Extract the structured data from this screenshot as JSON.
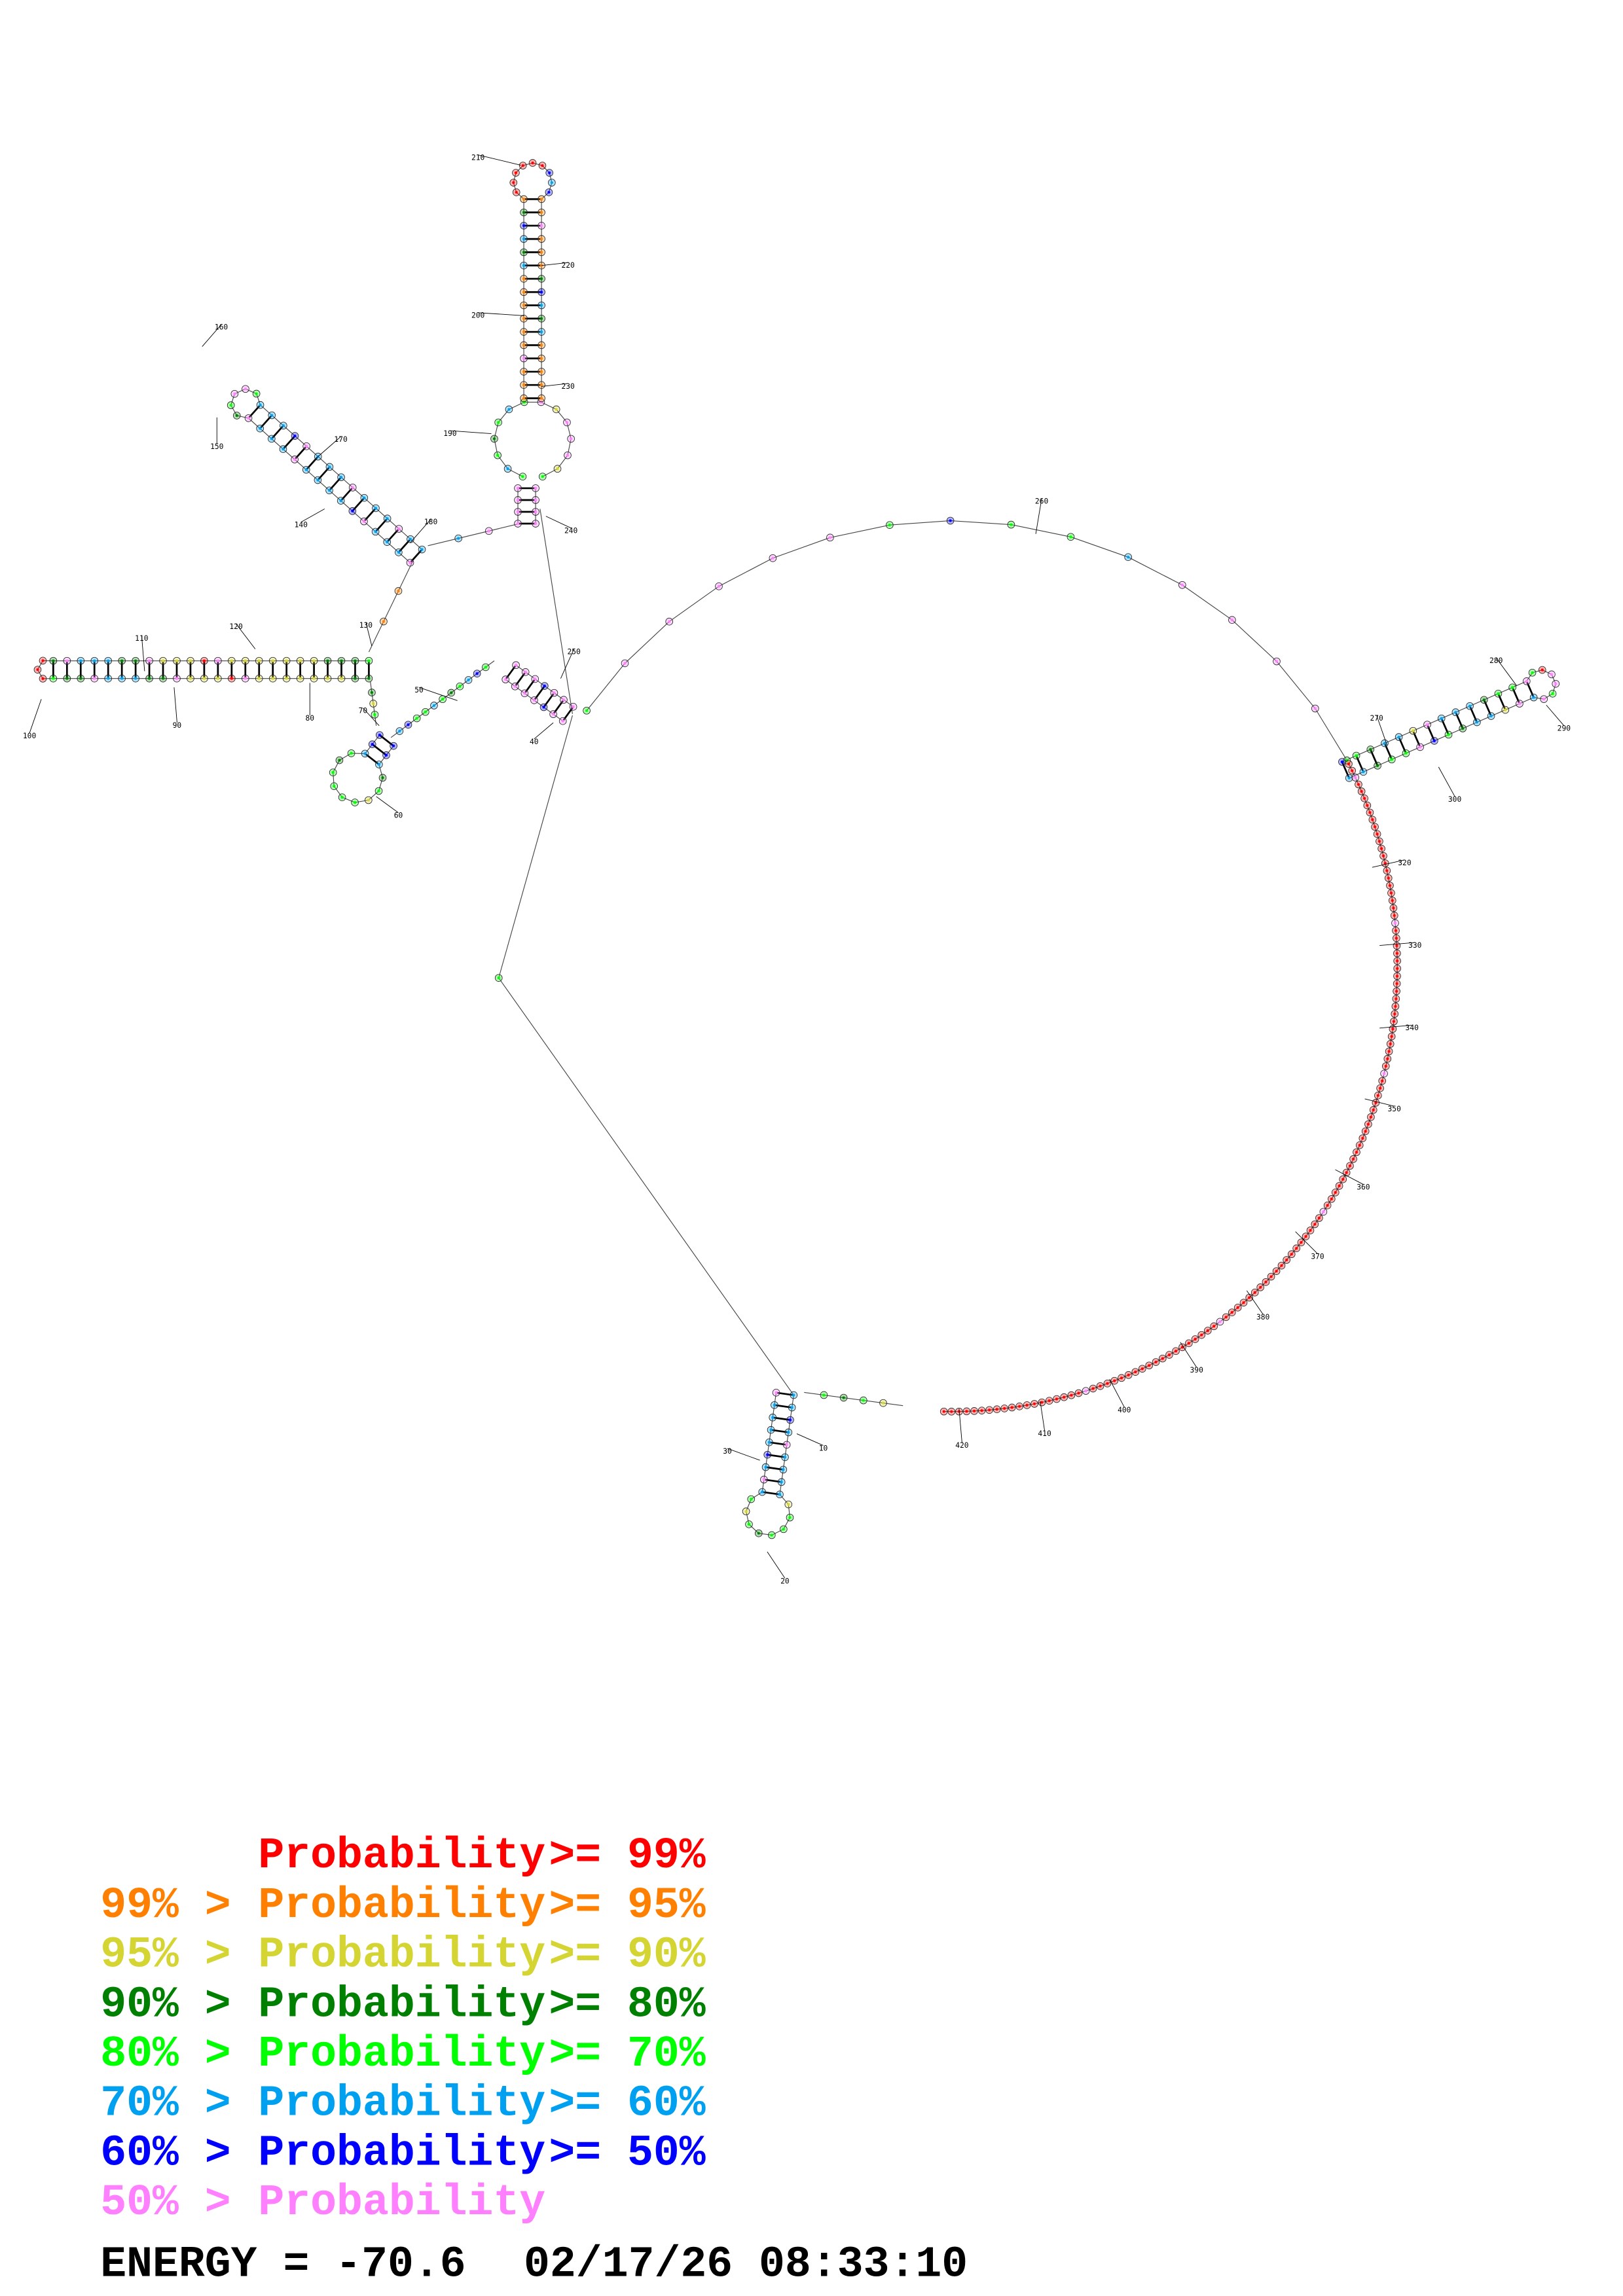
{
  "position_labels": [
    "10",
    "20",
    "30",
    "40",
    "50",
    "60",
    "70",
    "80",
    "90",
    "100",
    "110",
    "120",
    "130",
    "140",
    "150",
    "160",
    "170",
    "180",
    "190",
    "200",
    "210",
    "220",
    "230",
    "240",
    "250",
    "260",
    "270",
    "280",
    "290",
    "300",
    "320",
    "330",
    "340",
    "350",
    "360",
    "370",
    "380",
    "390",
    "400",
    "410",
    "420"
  ],
  "legend": {
    "rows": [
      {
        "prefix": "",
        "label": "Probability",
        "suffix": ">= 99%",
        "color": "#ff0000"
      },
      {
        "prefix": "99% >",
        "label": "Probability",
        "suffix": ">= 95%",
        "color": "#ff8000"
      },
      {
        "prefix": "95% >",
        "label": "Probability",
        "suffix": ">= 90%",
        "color": "#d4d432"
      },
      {
        "prefix": "90% >",
        "label": "Probability",
        "suffix": ">= 80%",
        "color": "#008000"
      },
      {
        "prefix": "80% >",
        "label": "Probability",
        "suffix": ">= 70%",
        "color": "#00ff00"
      },
      {
        "prefix": "70% >",
        "label": "Probability",
        "suffix": ">= 60%",
        "color": "#00a0f0"
      },
      {
        "prefix": "60% >",
        "label": "Probability",
        "suffix": ">= 50%",
        "color": "#0000ff"
      },
      {
        "prefix": "50% >",
        "label": "Probability",
        "suffix": "",
        "color": "#ff80ff"
      }
    ]
  },
  "footer": {
    "energy": "ENERGY = -70.6",
    "timestamp": "02/17/26 08:33:10"
  }
}
